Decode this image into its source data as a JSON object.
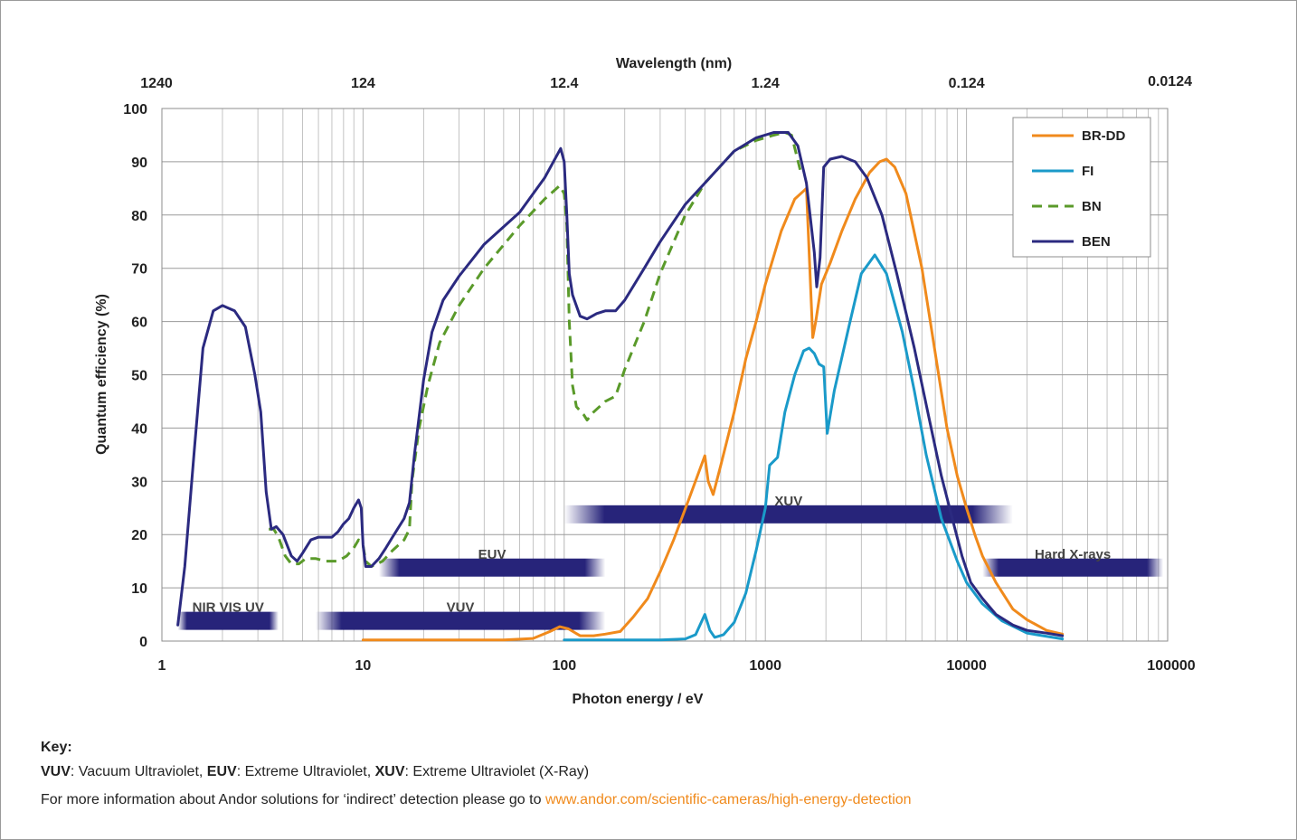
{
  "chart_data": {
    "type": "line",
    "xscale": "log",
    "xlim": [
      1,
      100000
    ],
    "ylim": [
      0,
      100
    ],
    "xlabel": "Photon energy / eV",
    "ylabel": "Quantum efficiency (%)",
    "top_axis_label": "Wavelength (nm)",
    "grid": true,
    "legend_position": "top-right",
    "x_ticks": [
      1,
      10,
      100,
      1000,
      10000,
      100000
    ],
    "x_tick_labels": [
      "1",
      "10",
      "100",
      "1000",
      "10000",
      "100000"
    ],
    "top_ticks": [
      {
        "energy": 1,
        "label": "1240"
      },
      {
        "energy": 10,
        "label": "124"
      },
      {
        "energy": 100,
        "label": "12.4"
      },
      {
        "energy": 1000,
        "label": "1.24"
      },
      {
        "energy": 10000,
        "label": "0.124"
      },
      {
        "energy": 100000,
        "label": "0.0124"
      }
    ],
    "y_ticks": [
      0,
      10,
      20,
      30,
      40,
      50,
      60,
      70,
      80,
      90,
      100
    ],
    "series": [
      {
        "name": "BR-DD",
        "color": "#f08a1c",
        "dash": false,
        "points": [
          [
            10,
            0.2
          ],
          [
            50,
            0.2
          ],
          [
            70,
            0.5
          ],
          [
            85,
            1.8
          ],
          [
            95,
            2.7
          ],
          [
            105,
            2.3
          ],
          [
            120,
            1.0
          ],
          [
            140,
            1.0
          ],
          [
            160,
            1.3
          ],
          [
            190,
            1.8
          ],
          [
            220,
            4.5
          ],
          [
            260,
            8
          ],
          [
            300,
            13
          ],
          [
            350,
            19
          ],
          [
            420,
            27
          ],
          [
            500,
            34.8
          ],
          [
            520,
            30
          ],
          [
            550,
            27.5
          ],
          [
            600,
            33
          ],
          [
            700,
            43
          ],
          [
            800,
            53
          ],
          [
            900,
            60
          ],
          [
            1000,
            67
          ],
          [
            1200,
            77
          ],
          [
            1400,
            83
          ],
          [
            1600,
            85
          ],
          [
            1720,
            57
          ],
          [
            1780,
            60
          ],
          [
            1900,
            67
          ],
          [
            2100,
            71
          ],
          [
            2400,
            77
          ],
          [
            2800,
            83
          ],
          [
            3300,
            88
          ],
          [
            3700,
            90
          ],
          [
            4000,
            90.5
          ],
          [
            4400,
            89
          ],
          [
            5000,
            84
          ],
          [
            6000,
            70
          ],
          [
            7000,
            54
          ],
          [
            8000,
            40
          ],
          [
            9000,
            31
          ],
          [
            10000,
            25
          ],
          [
            11000,
            20
          ],
          [
            12000,
            16
          ],
          [
            14000,
            11
          ],
          [
            17000,
            6
          ],
          [
            20000,
            4
          ],
          [
            25000,
            2
          ],
          [
            30000,
            1.3
          ]
        ]
      },
      {
        "name": "FI",
        "color": "#1a9ac9",
        "dash": false,
        "points": [
          [
            100,
            0.2
          ],
          [
            300,
            0.2
          ],
          [
            400,
            0.4
          ],
          [
            450,
            1.2
          ],
          [
            500,
            5
          ],
          [
            530,
            2
          ],
          [
            560,
            0.7
          ],
          [
            620,
            1.2
          ],
          [
            700,
            3.5
          ],
          [
            800,
            9
          ],
          [
            900,
            17
          ],
          [
            1000,
            25
          ],
          [
            1050,
            33
          ],
          [
            1150,
            34.5
          ],
          [
            1250,
            43
          ],
          [
            1400,
            50
          ],
          [
            1550,
            54.5
          ],
          [
            1650,
            55
          ],
          [
            1750,
            54
          ],
          [
            1850,
            52
          ],
          [
            1950,
            51.5
          ],
          [
            2030,
            39
          ],
          [
            2200,
            47
          ],
          [
            2600,
            59
          ],
          [
            3000,
            69
          ],
          [
            3500,
            72.5
          ],
          [
            4000,
            69
          ],
          [
            4800,
            58
          ],
          [
            5500,
            47
          ],
          [
            6300,
            35
          ],
          [
            7500,
            23
          ],
          [
            9000,
            15
          ],
          [
            10000,
            11
          ],
          [
            12000,
            7
          ],
          [
            15000,
            3.8
          ],
          [
            20000,
            1.5
          ],
          [
            30000,
            0.4
          ]
        ]
      },
      {
        "name": "BN",
        "color": "#5a9a2a",
        "dash": true,
        "points": [
          [
            3.4,
            21
          ],
          [
            3.6,
            21
          ],
          [
            3.8,
            19.5
          ],
          [
            4.1,
            16
          ],
          [
            4.4,
            14.5
          ],
          [
            4.8,
            14.5
          ],
          [
            5.2,
            15.5
          ],
          [
            5.8,
            15.5
          ],
          [
            6.5,
            15
          ],
          [
            7.5,
            15
          ],
          [
            8.3,
            16
          ],
          [
            9,
            17.5
          ],
          [
            9.5,
            19
          ],
          [
            10,
            18
          ],
          [
            10.3,
            15
          ],
          [
            11,
            14
          ],
          [
            12.5,
            15
          ],
          [
            14,
            17
          ],
          [
            16,
            19
          ],
          [
            17,
            21
          ],
          [
            17.5,
            30
          ],
          [
            19,
            40
          ],
          [
            21,
            48
          ],
          [
            24,
            56
          ],
          [
            30,
            63
          ],
          [
            40,
            70
          ],
          [
            60,
            78
          ],
          [
            80,
            83
          ],
          [
            95,
            85.5
          ],
          [
            100,
            84
          ],
          [
            103,
            78
          ],
          [
            106,
            60
          ],
          [
            110,
            48
          ],
          [
            115,
            44
          ],
          [
            125,
            42.5
          ],
          [
            130,
            41.5
          ],
          [
            140,
            43
          ],
          [
            160,
            45
          ],
          [
            180,
            46
          ],
          [
            200,
            51
          ],
          [
            250,
            60
          ],
          [
            300,
            69
          ],
          [
            400,
            80
          ],
          [
            500,
            86
          ],
          [
            700,
            92
          ],
          [
            900,
            94
          ],
          [
            1100,
            95
          ],
          [
            1250,
            95.5
          ],
          [
            1350,
            95
          ],
          [
            1500,
            88
          ]
        ]
      },
      {
        "name": "BEN",
        "color": "#2b2a80",
        "dash": false,
        "points": [
          [
            1.2,
            3
          ],
          [
            1.3,
            14
          ],
          [
            1.45,
            36
          ],
          [
            1.6,
            55
          ],
          [
            1.8,
            62
          ],
          [
            2.0,
            63
          ],
          [
            2.3,
            62
          ],
          [
            2.6,
            59
          ],
          [
            2.9,
            50
          ],
          [
            3.1,
            43
          ],
          [
            3.3,
            28
          ],
          [
            3.5,
            21
          ],
          [
            3.7,
            21.5
          ],
          [
            4.0,
            20
          ],
          [
            4.4,
            16
          ],
          [
            4.7,
            15
          ],
          [
            5.0,
            16.5
          ],
          [
            5.5,
            19
          ],
          [
            6.0,
            19.5
          ],
          [
            7.0,
            19.5
          ],
          [
            7.5,
            20.5
          ],
          [
            8.0,
            22
          ],
          [
            8.5,
            23
          ],
          [
            9.0,
            25
          ],
          [
            9.5,
            26.5
          ],
          [
            9.8,
            25
          ],
          [
            10.0,
            18
          ],
          [
            10.3,
            14
          ],
          [
            11.0,
            14
          ],
          [
            12.0,
            15.5
          ],
          [
            13,
            17.5
          ],
          [
            14,
            19.5
          ],
          [
            16,
            23
          ],
          [
            17,
            26
          ],
          [
            18,
            35
          ],
          [
            20,
            49
          ],
          [
            22,
            58
          ],
          [
            25,
            64
          ],
          [
            30,
            68.5
          ],
          [
            40,
            74.5
          ],
          [
            60,
            80.5
          ],
          [
            80,
            87
          ],
          [
            96,
            92.5
          ],
          [
            100,
            90
          ],
          [
            103,
            80
          ],
          [
            106,
            69
          ],
          [
            110,
            65
          ],
          [
            120,
            61
          ],
          [
            130,
            60.5
          ],
          [
            145,
            61.5
          ],
          [
            160,
            62
          ],
          [
            180,
            62
          ],
          [
            200,
            64
          ],
          [
            250,
            70
          ],
          [
            300,
            75
          ],
          [
            400,
            82
          ],
          [
            500,
            86
          ],
          [
            700,
            92
          ],
          [
            900,
            94.5
          ],
          [
            1100,
            95.5
          ],
          [
            1300,
            95.5
          ],
          [
            1450,
            93
          ],
          [
            1600,
            86
          ],
          [
            1750,
            73
          ],
          [
            1800,
            66.5
          ],
          [
            1870,
            72
          ],
          [
            1950,
            89
          ],
          [
            2100,
            90.5
          ],
          [
            2400,
            91
          ],
          [
            2800,
            90
          ],
          [
            3200,
            87
          ],
          [
            3800,
            80
          ],
          [
            4500,
            69
          ],
          [
            5500,
            55
          ],
          [
            6500,
            42
          ],
          [
            7500,
            31
          ],
          [
            8500,
            23
          ],
          [
            9500,
            16
          ],
          [
            10500,
            11
          ],
          [
            12000,
            8
          ],
          [
            14000,
            5
          ],
          [
            17000,
            3
          ],
          [
            20000,
            2
          ],
          [
            25000,
            1.5
          ],
          [
            30000,
            1
          ]
        ]
      }
    ],
    "bands": [
      {
        "label": "NIR  VIS UV",
        "x_start": 1.2,
        "x_end": 3.8,
        "y": 3.8,
        "label_y": 6.5
      },
      {
        "label": "VUV",
        "x_start": 5.8,
        "x_end": 160,
        "y": 3.8,
        "label_y": 6.5
      },
      {
        "label": "EUV",
        "x_start": 12,
        "x_end": 160,
        "y": 13.8,
        "label_y": 16.5
      },
      {
        "label": "XUV",
        "x_start": 100,
        "x_end": 17000,
        "y": 23.8,
        "label_y": 26.5
      },
      {
        "label": "Hard X-rays",
        "x_start": 12000,
        "x_end": 95000,
        "y": 13.8,
        "label_y": 16.5
      }
    ],
    "band_color": "#27247a"
  },
  "key": {
    "title": "Key:",
    "line1": [
      {
        "text": "VUV",
        "bold": true
      },
      {
        "text": ": Vacuum Ultraviolet, ",
        "bold": false
      },
      {
        "text": "EUV",
        "bold": true
      },
      {
        "text": ": Extreme Ultraviolet, ",
        "bold": false
      },
      {
        "text": "XUV",
        "bold": true
      },
      {
        "text": ": Extreme Ultraviolet (X-Ray)",
        "bold": false
      }
    ],
    "line2_text": "For more information about Andor solutions for ‘indirect’ detection please go to ",
    "line2_link": "www.andor.com/scientific-cameras/high-energy-detection"
  }
}
